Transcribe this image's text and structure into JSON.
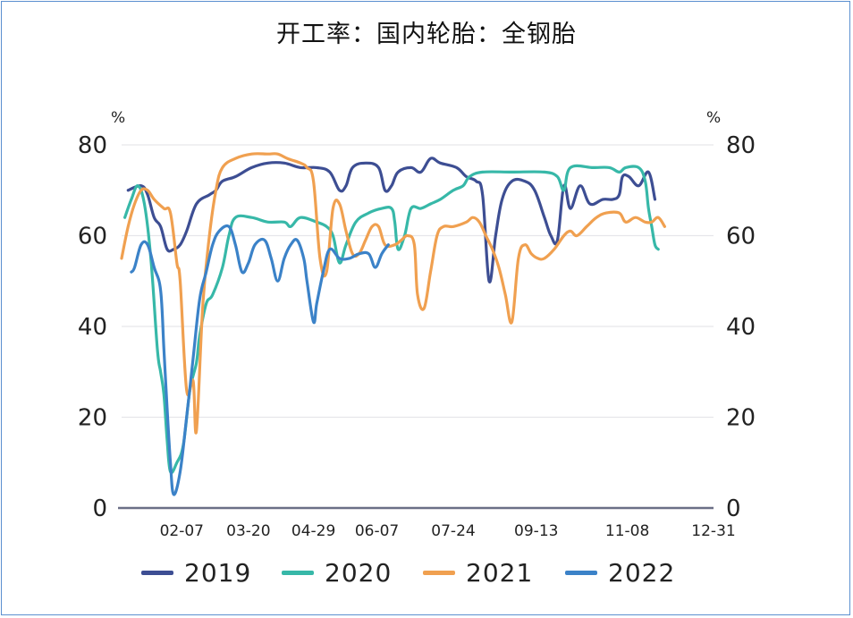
{
  "chart_data": {
    "type": "line",
    "title": "开工率：国内轮胎：全钢胎",
    "ylabel_left": "%",
    "ylabel_right": "%",
    "ylim": [
      0,
      80
    ],
    "yticks": [
      "0",
      "20",
      "40",
      "60",
      "80"
    ],
    "xlim": [
      0,
      364
    ],
    "x_ticks": [
      {
        "label": "02-07",
        "x": 37
      },
      {
        "label": "03-20",
        "x": 78
      },
      {
        "label": "04-29",
        "x": 118
      },
      {
        "label": "06-07",
        "x": 157
      },
      {
        "label": "07-24",
        "x": 204
      },
      {
        "label": "09-13",
        "x": 255
      },
      {
        "label": "11-08",
        "x": 311
      },
      {
        "label": "12-31",
        "x": 364
      }
    ],
    "legend_position": "bottom",
    "grid": "horizontal",
    "series": [
      {
        "name": "2019",
        "color": "#3d4e93",
        "points": [
          [
            4,
            70
          ],
          [
            12,
            71
          ],
          [
            16,
            69
          ],
          [
            20,
            64
          ],
          [
            24,
            62
          ],
          [
            28,
            57
          ],
          [
            32,
            57
          ],
          [
            36,
            58
          ],
          [
            40,
            61
          ],
          [
            46,
            67
          ],
          [
            54,
            69
          ],
          [
            58,
            70
          ],
          [
            62,
            72
          ],
          [
            70,
            73
          ],
          [
            80,
            75
          ],
          [
            90,
            76
          ],
          [
            100,
            76
          ],
          [
            110,
            75
          ],
          [
            120,
            75
          ],
          [
            128,
            74
          ],
          [
            134,
            70
          ],
          [
            138,
            71
          ],
          [
            142,
            75
          ],
          [
            150,
            76
          ],
          [
            158,
            75
          ],
          [
            162,
            70
          ],
          [
            166,
            71
          ],
          [
            170,
            74
          ],
          [
            178,
            75
          ],
          [
            184,
            74
          ],
          [
            190,
            77
          ],
          [
            196,
            76
          ],
          [
            206,
            75
          ],
          [
            212,
            73
          ],
          [
            218,
            72
          ],
          [
            222,
            69
          ],
          [
            226,
            50
          ],
          [
            230,
            60
          ],
          [
            234,
            68
          ],
          [
            240,
            72
          ],
          [
            248,
            72
          ],
          [
            254,
            70
          ],
          [
            260,
            64
          ],
          [
            264,
            60
          ],
          [
            268,
            59
          ],
          [
            272,
            71
          ],
          [
            276,
            66
          ],
          [
            282,
            71
          ],
          [
            288,
            67
          ],
          [
            296,
            68
          ],
          [
            302,
            68
          ],
          [
            306,
            69
          ],
          [
            308,
            73
          ],
          [
            312,
            73
          ],
          [
            318,
            71
          ],
          [
            324,
            74
          ],
          [
            328,
            68
          ]
        ]
      },
      {
        "name": "2020",
        "color": "#37b8a8",
        "points": [
          [
            2,
            64
          ],
          [
            6,
            68
          ],
          [
            10,
            71
          ],
          [
            14,
            67
          ],
          [
            18,
            55
          ],
          [
            22,
            35
          ],
          [
            24,
            30
          ],
          [
            26,
            25
          ],
          [
            28,
            15
          ],
          [
            30,
            8
          ],
          [
            34,
            10
          ],
          [
            38,
            14
          ],
          [
            42,
            26
          ],
          [
            46,
            32
          ],
          [
            48,
            38
          ],
          [
            52,
            45
          ],
          [
            56,
            47
          ],
          [
            62,
            53
          ],
          [
            66,
            60
          ],
          [
            70,
            64
          ],
          [
            80,
            64
          ],
          [
            90,
            63
          ],
          [
            100,
            63
          ],
          [
            104,
            62
          ],
          [
            110,
            64
          ],
          [
            120,
            63
          ],
          [
            126,
            62
          ],
          [
            130,
            60
          ],
          [
            134,
            54
          ],
          [
            138,
            58
          ],
          [
            144,
            63
          ],
          [
            152,
            65
          ],
          [
            160,
            66
          ],
          [
            166,
            66
          ],
          [
            168,
            63
          ],
          [
            170,
            57
          ],
          [
            174,
            60
          ],
          [
            178,
            66
          ],
          [
            184,
            66
          ],
          [
            190,
            67
          ],
          [
            196,
            68
          ],
          [
            204,
            70
          ],
          [
            210,
            71
          ],
          [
            214,
            73
          ],
          [
            222,
            74
          ],
          [
            240,
            74
          ],
          [
            260,
            74
          ],
          [
            268,
            73
          ],
          [
            272,
            70
          ],
          [
            276,
            75
          ],
          [
            290,
            75
          ],
          [
            300,
            75
          ],
          [
            306,
            74
          ],
          [
            310,
            75
          ],
          [
            318,
            75
          ],
          [
            322,
            72
          ],
          [
            324,
            66
          ],
          [
            326,
            62
          ],
          [
            328,
            58
          ],
          [
            330,
            57
          ]
        ]
      },
      {
        "name": "2021",
        "color": "#f0a050",
        "points": [
          [
            0,
            55
          ],
          [
            4,
            62
          ],
          [
            8,
            67
          ],
          [
            12,
            70
          ],
          [
            16,
            70
          ],
          [
            20,
            68
          ],
          [
            26,
            66
          ],
          [
            30,
            65
          ],
          [
            34,
            54
          ],
          [
            36,
            50
          ],
          [
            40,
            26
          ],
          [
            44,
            28
          ],
          [
            46,
            17
          ],
          [
            50,
            45
          ],
          [
            54,
            60
          ],
          [
            58,
            70
          ],
          [
            62,
            75
          ],
          [
            70,
            77
          ],
          [
            80,
            78
          ],
          [
            90,
            78
          ],
          [
            96,
            78
          ],
          [
            102,
            77
          ],
          [
            110,
            76
          ],
          [
            114,
            75
          ],
          [
            118,
            72
          ],
          [
            122,
            55
          ],
          [
            126,
            52
          ],
          [
            130,
            66
          ],
          [
            134,
            67
          ],
          [
            138,
            61
          ],
          [
            142,
            56
          ],
          [
            146,
            56
          ],
          [
            150,
            59
          ],
          [
            154,
            62
          ],
          [
            158,
            62
          ],
          [
            162,
            58
          ],
          [
            168,
            58
          ],
          [
            172,
            59
          ],
          [
            176,
            60
          ],
          [
            180,
            58
          ],
          [
            182,
            47
          ],
          [
            186,
            44
          ],
          [
            190,
            52
          ],
          [
            194,
            60
          ],
          [
            198,
            62
          ],
          [
            204,
            62
          ],
          [
            212,
            63
          ],
          [
            216,
            64
          ],
          [
            220,
            63
          ],
          [
            224,
            60
          ],
          [
            228,
            57
          ],
          [
            232,
            53
          ],
          [
            236,
            47
          ],
          [
            240,
            41
          ],
          [
            244,
            55
          ],
          [
            248,
            58
          ],
          [
            252,
            56
          ],
          [
            256,
            55
          ],
          [
            260,
            55
          ],
          [
            266,
            57
          ],
          [
            272,
            60
          ],
          [
            276,
            61
          ],
          [
            280,
            60
          ],
          [
            286,
            62
          ],
          [
            292,
            64
          ],
          [
            298,
            65
          ],
          [
            306,
            65
          ],
          [
            310,
            63
          ],
          [
            316,
            64
          ],
          [
            322,
            63
          ],
          [
            326,
            63
          ],
          [
            330,
            64
          ],
          [
            334,
            62
          ]
        ]
      },
      {
        "name": "2022",
        "color": "#3b82c8",
        "points": [
          [
            6,
            52
          ],
          [
            8,
            53
          ],
          [
            12,
            58
          ],
          [
            16,
            58
          ],
          [
            20,
            53
          ],
          [
            24,
            48
          ],
          [
            26,
            35
          ],
          [
            28,
            22
          ],
          [
            30,
            10
          ],
          [
            32,
            3
          ],
          [
            36,
            8
          ],
          [
            40,
            20
          ],
          [
            44,
            33
          ],
          [
            48,
            46
          ],
          [
            52,
            52
          ],
          [
            56,
            58
          ],
          [
            60,
            61
          ],
          [
            66,
            62
          ],
          [
            70,
            58
          ],
          [
            74,
            52
          ],
          [
            78,
            54
          ],
          [
            82,
            58
          ],
          [
            88,
            59
          ],
          [
            92,
            55
          ],
          [
            96,
            50
          ],
          [
            100,
            55
          ],
          [
            104,
            58
          ],
          [
            108,
            59
          ],
          [
            112,
            55
          ],
          [
            114,
            50
          ],
          [
            118,
            41
          ],
          [
            120,
            45
          ],
          [
            124,
            52
          ],
          [
            128,
            57
          ],
          [
            134,
            55
          ],
          [
            140,
            55
          ],
          [
            146,
            56
          ],
          [
            152,
            56
          ],
          [
            156,
            53
          ],
          [
            160,
            56
          ],
          [
            164,
            58
          ]
        ]
      }
    ]
  }
}
